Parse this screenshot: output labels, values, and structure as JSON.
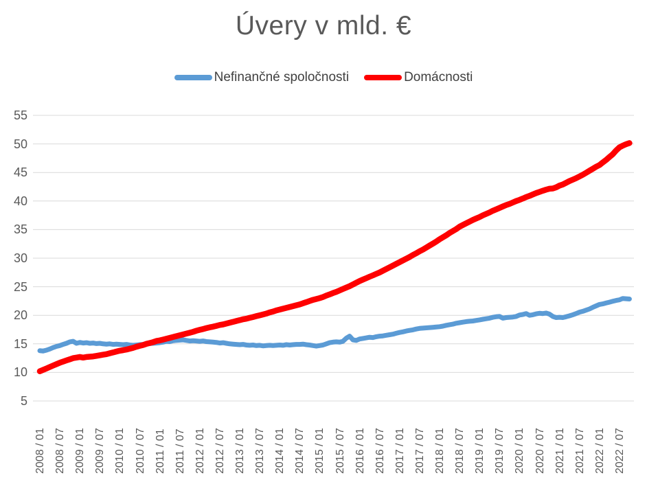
{
  "page": {
    "background": "#ffffff",
    "text_gray": "#595959",
    "grid_color": "#d9d9d9"
  },
  "chart_data": {
    "type": "line",
    "title": "Úvery v mld. €",
    "xlabel": "",
    "ylabel": "",
    "x_unit": "month",
    "x_start": "2008/01",
    "x_end": "2022/10",
    "ylim": [
      5,
      55
    ],
    "y_ticks": [
      55,
      50,
      45,
      40,
      35,
      30,
      25,
      20,
      15,
      10,
      5
    ],
    "grid": "horizontal",
    "legend_position": "top",
    "x_tick_labels": [
      "2008 / 01",
      "2008 / 07",
      "2009 / 01",
      "2009 / 07",
      "2010 / 01",
      "2010 / 07",
      "2011 / 01",
      "2011 / 07",
      "2012 / 01",
      "2012 / 07",
      "2013 / 01",
      "2013 / 07",
      "2014 / 01",
      "2014 / 07",
      "2015 / 01",
      "2015 / 07",
      "2016 / 01",
      "2016 / 07",
      "2017 / 01",
      "2017 / 07",
      "2018 / 01",
      "2018 / 07",
      "2019 / 01",
      "2019 / 07",
      "2020 / 01",
      "2020 / 07",
      "2021 / 01",
      "2021 / 07",
      "2022 / 01",
      "2022 / 07"
    ],
    "series": [
      {
        "id": "nonfinancial-corporations",
        "name": "Nefinančné spoločnosti",
        "color": "#5b9bd5",
        "stroke_width": 7,
        "values": [
          13.8,
          13.75,
          13.9,
          14.1,
          14.35,
          14.55,
          14.7,
          14.9,
          15.1,
          15.35,
          15.45,
          15.1,
          15.25,
          15.15,
          15.2,
          15.1,
          15.15,
          15.05,
          15.1,
          15.0,
          14.95,
          15.0,
          14.9,
          14.95,
          14.9,
          14.85,
          14.9,
          14.8,
          14.75,
          14.8,
          14.85,
          14.9,
          15.0,
          15.05,
          15.1,
          15.15,
          15.2,
          15.3,
          15.45,
          15.4,
          15.55,
          15.6,
          15.65,
          15.7,
          15.6,
          15.5,
          15.55,
          15.5,
          15.45,
          15.5,
          15.4,
          15.35,
          15.3,
          15.25,
          15.15,
          15.2,
          15.1,
          15.0,
          14.95,
          14.9,
          14.85,
          14.9,
          14.8,
          14.75,
          14.8,
          14.7,
          14.75,
          14.65,
          14.7,
          14.75,
          14.7,
          14.75,
          14.8,
          14.75,
          14.85,
          14.8,
          14.85,
          14.9,
          14.9,
          14.95,
          14.85,
          14.8,
          14.7,
          14.6,
          14.7,
          14.8,
          15.0,
          15.2,
          15.3,
          15.35,
          15.3,
          15.45,
          16.0,
          16.35,
          15.7,
          15.6,
          15.85,
          15.95,
          16.05,
          16.15,
          16.1,
          16.25,
          16.35,
          16.4,
          16.5,
          16.6,
          16.7,
          16.85,
          17.0,
          17.1,
          17.25,
          17.35,
          17.45,
          17.6,
          17.7,
          17.75,
          17.8,
          17.85,
          17.9,
          17.95,
          18.0,
          18.1,
          18.25,
          18.35,
          18.45,
          18.6,
          18.7,
          18.8,
          18.9,
          18.95,
          19.0,
          19.1,
          19.2,
          19.3,
          19.4,
          19.5,
          19.65,
          19.75,
          19.8,
          19.5,
          19.6,
          19.65,
          19.7,
          19.8,
          20.05,
          20.15,
          20.3,
          20.0,
          20.1,
          20.25,
          20.35,
          20.3,
          20.4,
          20.2,
          19.8,
          19.6,
          19.65,
          19.6,
          19.75,
          19.9,
          20.1,
          20.3,
          20.55,
          20.7,
          20.9,
          21.1,
          21.4,
          21.65,
          21.9,
          22.0,
          22.15,
          22.3,
          22.45,
          22.6,
          22.7,
          22.95,
          22.9,
          22.85
        ]
      },
      {
        "id": "households",
        "name": "Domácnosti",
        "color": "#fe0000",
        "stroke_width": 8.5,
        "values": [
          10.2,
          10.45,
          10.7,
          10.95,
          11.2,
          11.45,
          11.7,
          11.9,
          12.1,
          12.3,
          12.5,
          12.6,
          12.7,
          12.6,
          12.7,
          12.75,
          12.8,
          12.9,
          13.0,
          13.1,
          13.2,
          13.35,
          13.5,
          13.65,
          13.8,
          13.9,
          14.0,
          14.15,
          14.3,
          14.5,
          14.65,
          14.8,
          15.0,
          15.15,
          15.3,
          15.5,
          15.6,
          15.75,
          15.9,
          16.05,
          16.2,
          16.35,
          16.5,
          16.65,
          16.8,
          16.95,
          17.1,
          17.3,
          17.45,
          17.6,
          17.75,
          17.9,
          18.0,
          18.15,
          18.3,
          18.4,
          18.55,
          18.7,
          18.85,
          19.0,
          19.15,
          19.3,
          19.4,
          19.55,
          19.7,
          19.85,
          20.0,
          20.15,
          20.3,
          20.5,
          20.65,
          20.85,
          21.0,
          21.15,
          21.3,
          21.45,
          21.6,
          21.75,
          21.9,
          22.1,
          22.3,
          22.5,
          22.7,
          22.85,
          23.0,
          23.2,
          23.45,
          23.65,
          23.9,
          24.1,
          24.35,
          24.6,
          24.85,
          25.1,
          25.4,
          25.7,
          26.0,
          26.25,
          26.5,
          26.75,
          27.0,
          27.25,
          27.5,
          27.8,
          28.1,
          28.4,
          28.7,
          29.0,
          29.3,
          29.6,
          29.9,
          30.2,
          30.55,
          30.85,
          31.2,
          31.5,
          31.85,
          32.2,
          32.55,
          32.9,
          33.3,
          33.65,
          34.0,
          34.4,
          34.75,
          35.1,
          35.5,
          35.8,
          36.1,
          36.4,
          36.7,
          36.95,
          37.2,
          37.5,
          37.75,
          38.0,
          38.3,
          38.55,
          38.8,
          39.05,
          39.3,
          39.5,
          39.75,
          40.0,
          40.2,
          40.45,
          40.7,
          40.9,
          41.15,
          41.4,
          41.6,
          41.8,
          42.0,
          42.15,
          42.2,
          42.4,
          42.7,
          42.9,
          43.2,
          43.5,
          43.75,
          44.0,
          44.3,
          44.6,
          44.95,
          45.3,
          45.65,
          46.0,
          46.3,
          46.75,
          47.2,
          47.7,
          48.2,
          48.85,
          49.4,
          49.7,
          49.95,
          50.15
        ]
      }
    ]
  }
}
